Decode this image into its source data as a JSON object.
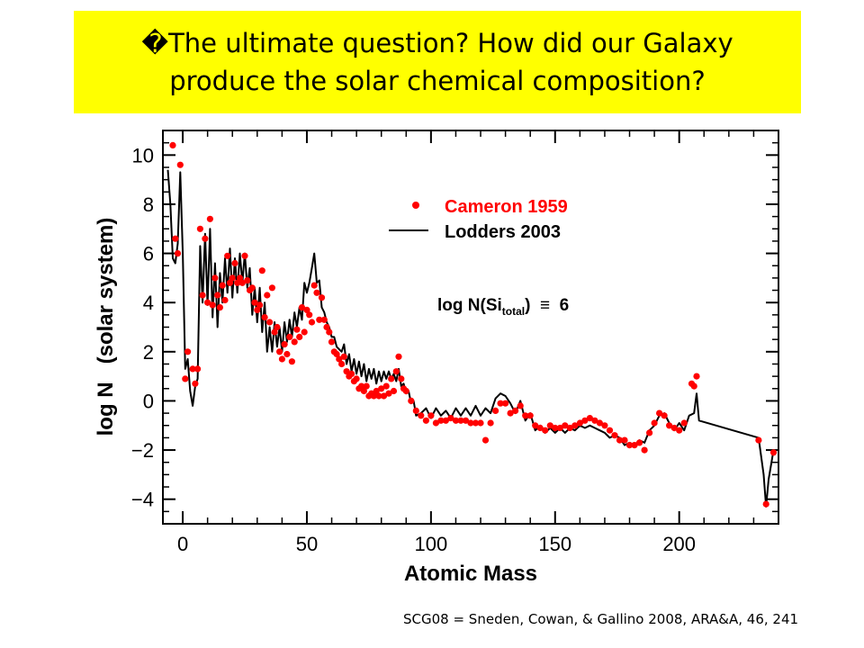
{
  "slide": {
    "title_line1": "�The ultimate question?  How did our Galaxy",
    "title_line2": "produce the solar chemical composition?",
    "credit": "SCG08 = Sneden, Cowan, & Gallino 2008, ARA&A, 46, 241"
  },
  "colors": {
    "banner": "#ffff00",
    "cameron": "#ff0000",
    "lodders": "#000000"
  },
  "chart_data": {
    "type": "scatter",
    "xlabel": "Atomic Mass",
    "ylabel": "log N   (solar system)",
    "xlim": [
      -8,
      240
    ],
    "ylim": [
      -5,
      11
    ],
    "xticks": [
      0,
      50,
      100,
      150,
      200
    ],
    "yticks": [
      -4,
      -2,
      0,
      2,
      4,
      6,
      8,
      10
    ],
    "xtick_labels": [
      "0",
      "50",
      "100",
      "150",
      "200"
    ],
    "ytick_labels": [
      "−4",
      "−2",
      "0",
      "2",
      "4",
      "6",
      "8",
      "10"
    ],
    "annotation_prefix": "log N(Si",
    "annotation_sub": "total",
    "annotation_suffix": ")  ≡  6",
    "grid": false,
    "legend_position": "top-right",
    "series": [
      {
        "name": "Cameron 1959",
        "style": "points",
        "points": [
          [
            -4,
            10.4
          ],
          [
            -3,
            6.6
          ],
          [
            -2,
            6.0
          ],
          [
            -1,
            9.6
          ],
          [
            1,
            0.9
          ],
          [
            2,
            2.0
          ],
          [
            4,
            1.3
          ],
          [
            5,
            0.7
          ],
          [
            6,
            1.3
          ],
          [
            7,
            7.0
          ],
          [
            8,
            4.3
          ],
          [
            9,
            6.6
          ],
          [
            10,
            4.0
          ],
          [
            11,
            7.4
          ],
          [
            12,
            3.9
          ],
          [
            13,
            5.0
          ],
          [
            14,
            4.3
          ],
          [
            15,
            3.8
          ],
          [
            16,
            4.7
          ],
          [
            17,
            4.1
          ],
          [
            18,
            5.9
          ],
          [
            19,
            4.8
          ],
          [
            20,
            5.0
          ],
          [
            21,
            5.6
          ],
          [
            22,
            4.8
          ],
          [
            23,
            5.0
          ],
          [
            24,
            4.8
          ],
          [
            25,
            5.9
          ],
          [
            26,
            4.9
          ],
          [
            27,
            4.5
          ],
          [
            28,
            4.6
          ],
          [
            29,
            4.0
          ],
          [
            30,
            3.7
          ],
          [
            31,
            3.9
          ],
          [
            32,
            5.3
          ],
          [
            33,
            3.4
          ],
          [
            34,
            4.3
          ],
          [
            35,
            3.2
          ],
          [
            36,
            4.6
          ],
          [
            37,
            2.8
          ],
          [
            38,
            3.0
          ],
          [
            39,
            2.0
          ],
          [
            40,
            1.7
          ],
          [
            41,
            2.3
          ],
          [
            42,
            1.9
          ],
          [
            43,
            2.6
          ],
          [
            44,
            1.6
          ],
          [
            45,
            2.4
          ],
          [
            46,
            2.9
          ],
          [
            47,
            2.6
          ],
          [
            48,
            3.8
          ],
          [
            49,
            2.8
          ],
          [
            50,
            3.7
          ],
          [
            51,
            3.5
          ],
          [
            52,
            3.2
          ],
          [
            53,
            4.7
          ],
          [
            54,
            4.4
          ],
          [
            55,
            3.3
          ],
          [
            56,
            4.2
          ],
          [
            57,
            3.3
          ],
          [
            58,
            3.0
          ],
          [
            59,
            2.8
          ],
          [
            60,
            2.4
          ],
          [
            61,
            2.0
          ],
          [
            62,
            1.9
          ],
          [
            63,
            1.7
          ],
          [
            64,
            1.5
          ],
          [
            65,
            1.8
          ],
          [
            66,
            1.2
          ],
          [
            67,
            1.0
          ],
          [
            68,
            1.1
          ],
          [
            69,
            0.8
          ],
          [
            70,
            0.9
          ],
          [
            71,
            0.5
          ],
          [
            72,
            0.6
          ],
          [
            73,
            0.4
          ],
          [
            74,
            0.6
          ],
          [
            75,
            0.2
          ],
          [
            76,
            0.3
          ],
          [
            77,
            0.2
          ],
          [
            78,
            0.4
          ],
          [
            79,
            0.2
          ],
          [
            80,
            0.5
          ],
          [
            81,
            0.2
          ],
          [
            82,
            0.6
          ],
          [
            83,
            0.3
          ],
          [
            84,
            0.9
          ],
          [
            85,
            0.4
          ],
          [
            86,
            1.2
          ],
          [
            87,
            1.8
          ],
          [
            88,
            0.9
          ],
          [
            89,
            0.5
          ],
          [
            90,
            0.4
          ],
          [
            92,
            0.0
          ],
          [
            94,
            -0.4
          ],
          [
            96,
            -0.6
          ],
          [
            98,
            -0.8
          ],
          [
            100,
            -0.6
          ],
          [
            102,
            -0.9
          ],
          [
            104,
            -0.8
          ],
          [
            106,
            -0.8
          ],
          [
            108,
            -0.7
          ],
          [
            110,
            -0.8
          ],
          [
            112,
            -0.8
          ],
          [
            114,
            -0.8
          ],
          [
            116,
            -0.9
          ],
          [
            118,
            -0.9
          ],
          [
            120,
            -0.9
          ],
          [
            122,
            -1.6
          ],
          [
            124,
            -0.9
          ],
          [
            126,
            -0.4
          ],
          [
            128,
            -0.1
          ],
          [
            130,
            -0.1
          ],
          [
            132,
            -0.5
          ],
          [
            134,
            -0.4
          ],
          [
            136,
            -0.2
          ],
          [
            138,
            -0.6
          ],
          [
            140,
            -0.6
          ],
          [
            142,
            -1.0
          ],
          [
            144,
            -1.1
          ],
          [
            146,
            -1.2
          ],
          [
            148,
            -1.0
          ],
          [
            150,
            -1.1
          ],
          [
            152,
            -1.1
          ],
          [
            154,
            -1.0
          ],
          [
            156,
            -1.1
          ],
          [
            158,
            -1.0
          ],
          [
            160,
            -0.9
          ],
          [
            162,
            -0.8
          ],
          [
            164,
            -0.7
          ],
          [
            166,
            -0.8
          ],
          [
            168,
            -0.9
          ],
          [
            170,
            -1.0
          ],
          [
            172,
            -1.2
          ],
          [
            174,
            -1.4
          ],
          [
            176,
            -1.6
          ],
          [
            178,
            -1.6
          ],
          [
            180,
            -1.8
          ],
          [
            182,
            -1.8
          ],
          [
            184,
            -1.7
          ],
          [
            186,
            -2.0
          ],
          [
            188,
            -1.3
          ],
          [
            190,
            -0.9
          ],
          [
            192,
            -0.5
          ],
          [
            194,
            -0.6
          ],
          [
            196,
            -1.0
          ],
          [
            198,
            -1.1
          ],
          [
            200,
            -1.2
          ],
          [
            202,
            -0.9
          ],
          [
            205,
            0.7
          ],
          [
            206,
            0.6
          ],
          [
            207,
            1.0
          ],
          [
            232,
            -1.6
          ],
          [
            235,
            -4.2
          ],
          [
            238,
            -2.1
          ]
        ]
      },
      {
        "name": "Lodders 2003",
        "style": "line",
        "points": [
          [
            -6,
            9.4
          ],
          [
            -5,
            8.0
          ],
          [
            -4,
            5.8
          ],
          [
            -3,
            5.6
          ],
          [
            -2,
            6.4
          ],
          [
            -1,
            9.3
          ],
          [
            0,
            6.0
          ],
          [
            1,
            1.3
          ],
          [
            2,
            1.7
          ],
          [
            3,
            0.4
          ],
          [
            4,
            -0.2
          ],
          [
            5,
            0.6
          ],
          [
            6,
            0.9
          ],
          [
            7,
            6.3
          ],
          [
            8,
            4.0
          ],
          [
            9,
            6.8
          ],
          [
            10,
            3.9
          ],
          [
            11,
            7.0
          ],
          [
            12,
            3.4
          ],
          [
            13,
            5.6
          ],
          [
            14,
            3.0
          ],
          [
            15,
            5.2
          ],
          [
            16,
            4.0
          ],
          [
            17,
            5.8
          ],
          [
            18,
            4.4
          ],
          [
            19,
            6.2
          ],
          [
            20,
            4.2
          ],
          [
            21,
            5.8
          ],
          [
            22,
            4.4
          ],
          [
            23,
            6.0
          ],
          [
            24,
            4.8
          ],
          [
            25,
            6.0
          ],
          [
            26,
            4.6
          ],
          [
            27,
            5.4
          ],
          [
            28,
            3.5
          ],
          [
            29,
            4.6
          ],
          [
            30,
            3.2
          ],
          [
            31,
            4.6
          ],
          [
            32,
            2.8
          ],
          [
            33,
            4.0
          ],
          [
            34,
            2.0
          ],
          [
            35,
            3.0
          ],
          [
            36,
            2.0
          ],
          [
            37,
            3.2
          ],
          [
            38,
            2.2
          ],
          [
            39,
            3.0
          ],
          [
            40,
            2.0
          ],
          [
            41,
            3.2
          ],
          [
            42,
            2.4
          ],
          [
            43,
            3.3
          ],
          [
            44,
            2.6
          ],
          [
            45,
            3.6
          ],
          [
            46,
            3.0
          ],
          [
            47,
            3.8
          ],
          [
            48,
            3.3
          ],
          [
            49,
            4.8
          ],
          [
            50,
            4.4
          ],
          [
            51,
            4.8
          ],
          [
            52,
            5.4
          ],
          [
            53,
            6.0
          ],
          [
            54,
            4.8
          ],
          [
            55,
            4.9
          ],
          [
            56,
            3.8
          ],
          [
            57,
            3.6
          ],
          [
            58,
            3.2
          ],
          [
            59,
            3.0
          ],
          [
            60,
            2.6
          ],
          [
            61,
            2.6
          ],
          [
            62,
            2.2
          ],
          [
            63,
            2.1
          ],
          [
            64,
            2.0
          ],
          [
            65,
            2.3
          ],
          [
            66,
            1.5
          ],
          [
            67,
            1.9
          ],
          [
            68,
            1.2
          ],
          [
            69,
            1.7
          ],
          [
            70,
            1.1
          ],
          [
            71,
            1.6
          ],
          [
            72,
            1.0
          ],
          [
            73,
            1.5
          ],
          [
            74,
            0.8
          ],
          [
            75,
            1.3
          ],
          [
            76,
            0.9
          ],
          [
            77,
            1.3
          ],
          [
            78,
            0.7
          ],
          [
            79,
            1.2
          ],
          [
            80,
            0.8
          ],
          [
            81,
            1.2
          ],
          [
            82,
            0.9
          ],
          [
            83,
            1.2
          ],
          [
            84,
            0.9
          ],
          [
            85,
            1.1
          ],
          [
            86,
            0.8
          ],
          [
            87,
            1.3
          ],
          [
            88,
            0.6
          ],
          [
            89,
            0.7
          ],
          [
            90,
            0.3
          ],
          [
            91,
            0.4
          ],
          [
            92,
            -0.1
          ],
          [
            93,
            0.0
          ],
          [
            94,
            -0.6
          ],
          [
            96,
            -0.5
          ],
          [
            98,
            -0.3
          ],
          [
            100,
            -0.7
          ],
          [
            102,
            -0.3
          ],
          [
            104,
            -0.6
          ],
          [
            106,
            -0.4
          ],
          [
            108,
            -0.7
          ],
          [
            110,
            -0.3
          ],
          [
            112,
            -0.6
          ],
          [
            114,
            -0.3
          ],
          [
            116,
            -0.6
          ],
          [
            118,
            -0.2
          ],
          [
            120,
            -0.6
          ],
          [
            122,
            -0.3
          ],
          [
            124,
            -0.5
          ],
          [
            126,
            0.1
          ],
          [
            128,
            0.3
          ],
          [
            130,
            0.2
          ],
          [
            132,
            -0.1
          ],
          [
            134,
            -0.5
          ],
          [
            136,
            0.0
          ],
          [
            138,
            -0.8
          ],
          [
            140,
            -0.5
          ],
          [
            142,
            -1.2
          ],
          [
            144,
            -1.0
          ],
          [
            146,
            -1.3
          ],
          [
            148,
            -1.1
          ],
          [
            150,
            -1.3
          ],
          [
            152,
            -1.1
          ],
          [
            154,
            -1.3
          ],
          [
            156,
            -1.1
          ],
          [
            158,
            -1.2
          ],
          [
            160,
            -1.0
          ],
          [
            162,
            -1.1
          ],
          [
            164,
            -1.0
          ],
          [
            166,
            -1.1
          ],
          [
            168,
            -1.2
          ],
          [
            170,
            -1.3
          ],
          [
            172,
            -1.5
          ],
          [
            174,
            -1.4
          ],
          [
            176,
            -1.5
          ],
          [
            178,
            -1.8
          ],
          [
            180,
            -1.7
          ],
          [
            182,
            -1.8
          ],
          [
            184,
            -1.6
          ],
          [
            186,
            -1.7
          ],
          [
            188,
            -1.2
          ],
          [
            190,
            -1.0
          ],
          [
            192,
            -0.6
          ],
          [
            194,
            -0.5
          ],
          [
            196,
            -0.9
          ],
          [
            198,
            -1.2
          ],
          [
            200,
            -0.9
          ],
          [
            202,
            -1.2
          ],
          [
            204,
            -0.6
          ],
          [
            206,
            -0.5
          ],
          [
            207,
            0.3
          ],
          [
            208,
            -0.8
          ],
          [
            232,
            -1.5
          ],
          [
            234,
            -3.0
          ],
          [
            235,
            -4.3
          ],
          [
            236,
            -3.2
          ],
          [
            238,
            -2.0
          ]
        ]
      }
    ]
  }
}
